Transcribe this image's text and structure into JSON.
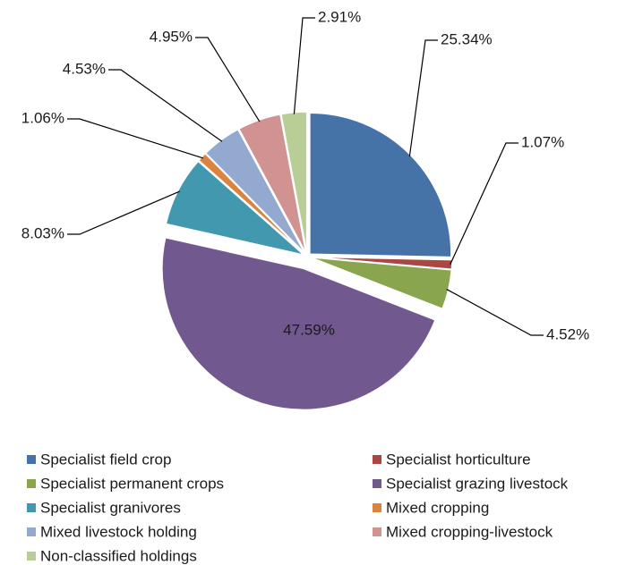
{
  "chart_data": {
    "type": "pie",
    "categories": [
      "Specialist field crop",
      "Specialist horticulture",
      "Specialist permanent crops",
      "Specialist grazing livestock",
      "Specialist granivores",
      "Mixed cropping",
      "Mixed livestock holding",
      "Mixed cropping-livestock",
      "Non-classified holdings"
    ],
    "values": [
      25.34,
      1.07,
      4.52,
      47.59,
      8.03,
      1.06,
      4.53,
      4.95,
      2.91
    ],
    "value_labels": [
      "25.34%",
      "1.07%",
      "4.52%",
      "47.59%",
      "8.03%",
      "1.06%",
      "4.53%",
      "4.95%",
      "2.91%"
    ],
    "colors": [
      "#4572a7",
      "#aa4643",
      "#89a54e",
      "#71588f",
      "#4198af",
      "#db843d",
      "#93a9cf",
      "#d19392",
      "#b9cd96"
    ],
    "legend": "bottom"
  }
}
